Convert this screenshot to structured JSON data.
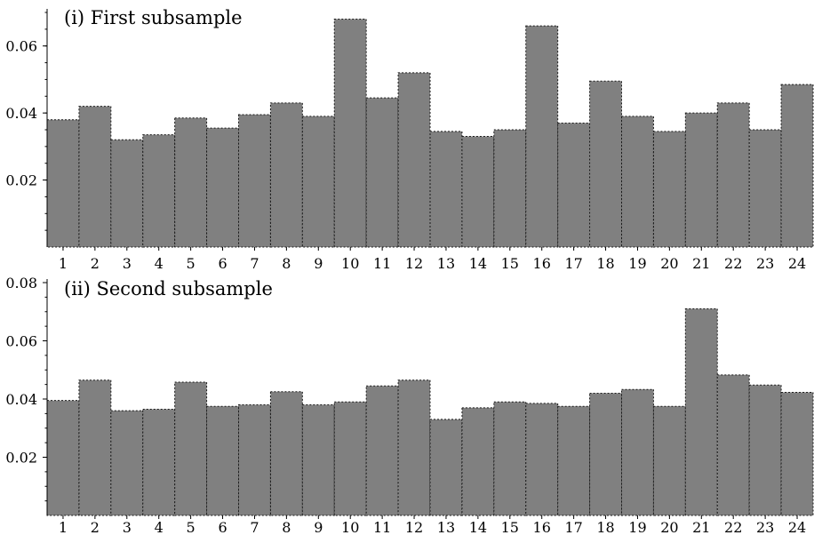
{
  "chart_data": [
    {
      "type": "bar",
      "title": "(i) First subsample",
      "categories": [
        "1",
        "2",
        "3",
        "4",
        "5",
        "6",
        "7",
        "8",
        "9",
        "10",
        "11",
        "12",
        "13",
        "14",
        "15",
        "16",
        "17",
        "18",
        "19",
        "20",
        "21",
        "22",
        "23",
        "24"
      ],
      "values": [
        0.038,
        0.042,
        0.032,
        0.0335,
        0.0385,
        0.0355,
        0.0395,
        0.043,
        0.039,
        0.068,
        0.0445,
        0.052,
        0.0345,
        0.033,
        0.035,
        0.066,
        0.037,
        0.0495,
        0.039,
        0.0345,
        0.04,
        0.043,
        0.035,
        0.0485
      ],
      "xlabel": "",
      "ylabel": "",
      "ylim": [
        0,
        0.07
      ],
      "yticks": [
        0.02,
        0.04,
        0.06
      ],
      "ytick_labels": [
        "0.02",
        "0.04",
        "0.06"
      ],
      "bar_color": "#808080",
      "grid": false
    },
    {
      "type": "bar",
      "title": "(ii) Second subsample",
      "categories": [
        "1",
        "2",
        "3",
        "4",
        "5",
        "6",
        "7",
        "8",
        "9",
        "10",
        "11",
        "12",
        "13",
        "14",
        "15",
        "16",
        "17",
        "18",
        "19",
        "20",
        "21",
        "22",
        "23",
        "24"
      ],
      "values": [
        0.0395,
        0.0465,
        0.036,
        0.0365,
        0.0458,
        0.0375,
        0.038,
        0.0425,
        0.038,
        0.039,
        0.0445,
        0.0465,
        0.033,
        0.037,
        0.039,
        0.0385,
        0.0375,
        0.042,
        0.0433,
        0.0375,
        0.071,
        0.0483,
        0.0448,
        0.0423
      ],
      "xlabel": "",
      "ylabel": "",
      "ylim": [
        0,
        0.08
      ],
      "yticks": [
        0.02,
        0.04,
        0.06,
        0.08
      ],
      "ytick_labels": [
        "0.02",
        "0.04",
        "0.06",
        "0.08"
      ],
      "bar_color": "#808080",
      "grid": false
    }
  ]
}
